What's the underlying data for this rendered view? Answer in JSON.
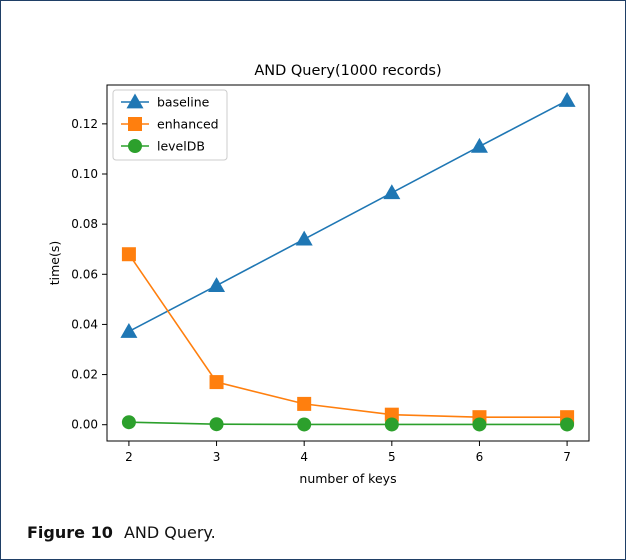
{
  "figure": {
    "caption_label": "Figure 10",
    "caption_text": "AND Query."
  },
  "chart_data": {
    "type": "line",
    "title": "AND Query(1000 records)",
    "xlabel": "number of keys",
    "ylabel": "time(s)",
    "x": [
      2,
      3,
      4,
      5,
      6,
      7
    ],
    "xticks": [
      "2",
      "3",
      "4",
      "5",
      "6",
      "7"
    ],
    "yticks": [
      "0.00",
      "0.02",
      "0.04",
      "0.06",
      "0.08",
      "0.10",
      "0.12"
    ],
    "xlim": [
      1.75,
      7.25
    ],
    "ylim": [
      -0.0065,
      0.1355
    ],
    "grid": false,
    "legend_position": "top-left",
    "series": [
      {
        "name": "baseline",
        "color": "#1f77b4",
        "marker": "triangle",
        "values": [
          0.0372,
          0.0555,
          0.074,
          0.0925,
          0.111,
          0.1293
        ]
      },
      {
        "name": "enhanced",
        "color": "#ff7f0e",
        "marker": "square",
        "values": [
          0.068,
          0.017,
          0.0083,
          0.004,
          0.003,
          0.003
        ]
      },
      {
        "name": "levelDB",
        "color": "#2ca02c",
        "marker": "circle",
        "values": [
          0.001,
          0.0002,
          0.0001,
          0.0001,
          0.0001,
          0.0001
        ]
      }
    ]
  }
}
